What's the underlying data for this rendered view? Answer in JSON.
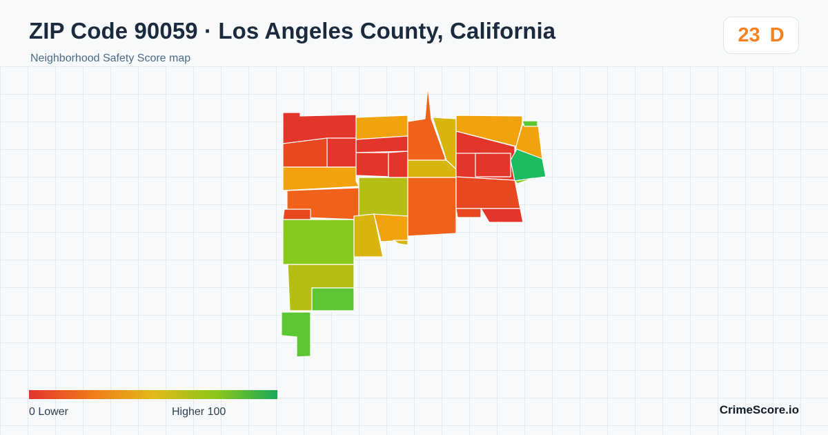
{
  "header": {
    "title": "ZIP Code 90059 · Los Angeles County, California",
    "subtitle": "Neighborhood Safety Score map"
  },
  "score": {
    "value": "23",
    "grade": "D",
    "color": "#f5811f"
  },
  "legend": {
    "min_label": "0  Lower",
    "max_label": "Higher  100",
    "colors": [
      "#e3342f",
      "#f07a1a",
      "#e2b91a",
      "#8cc71a",
      "#1aa858"
    ]
  },
  "brand": "CrimeScore.io",
  "map_colors": {
    "red": "#e3352a",
    "red_orange": "#e8481f",
    "orange": "#f0621a",
    "amber": "#f2a20d",
    "yellow": "#d8b40f",
    "olive": "#b5be14",
    "yellow_green": "#86c81c",
    "light_green": "#5cc732",
    "green": "#1dbc60"
  }
}
